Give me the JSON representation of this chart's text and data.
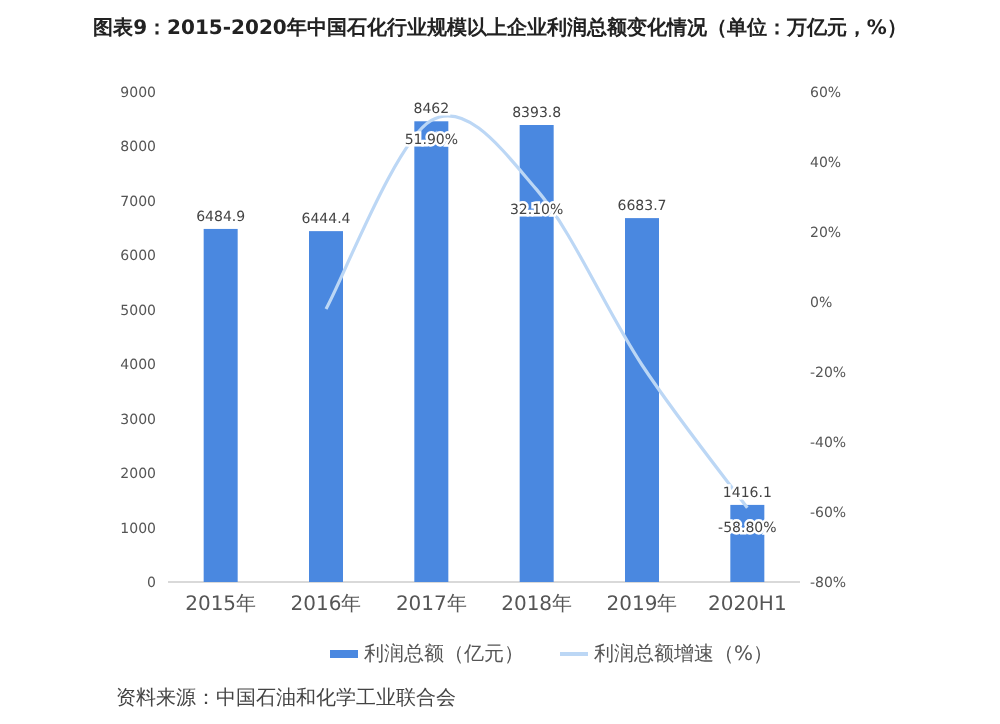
{
  "chart_data": {
    "type": "bar",
    "title": "图表9：2015-2020年中国石化行业规模以上企业利润总额变化情况（单位：万亿元，%）",
    "categories": [
      "2015年",
      "2016年",
      "2017年",
      "2018年",
      "2019年",
      "2020H1"
    ],
    "series": [
      {
        "name": "利润总额（亿元）",
        "color": "#4a88e0",
        "values": [
          6484.9,
          6444.4,
          8462,
          8393.8,
          6683.7,
          1416.1
        ],
        "value_labels": [
          "6484.9",
          "6444.4",
          "8462",
          "8393.8",
          "6683.7",
          "1416.1"
        ]
      },
      {
        "name": "利润总额增速（%）",
        "type": "line",
        "axis": "y2",
        "color": "#bcd7f5",
        "values": [
          null,
          -2,
          51.9,
          32.1,
          -18,
          -58.8
        ],
        "value_labels": [
          null,
          null,
          "51.90%",
          "32.10%",
          null,
          "-58.80%"
        ]
      }
    ],
    "ylim": [
      0,
      9000
    ],
    "yticks": [
      0,
      1000,
      2000,
      3000,
      4000,
      5000,
      6000,
      7000,
      8000,
      9000
    ],
    "y2lim": [
      -80,
      60
    ],
    "y2ticks": [
      {
        "value": -80,
        "label": "-80%"
      },
      {
        "value": -60,
        "label": "-60%"
      },
      {
        "value": -40,
        "label": "-40%"
      },
      {
        "value": -20,
        "label": "-20%"
      },
      {
        "value": 0,
        "label": "0%"
      },
      {
        "value": 20,
        "label": "20%"
      },
      {
        "value": 40,
        "label": "40%"
      },
      {
        "value": 60,
        "label": "60%"
      }
    ],
    "legend": "bottom",
    "grid": false,
    "annotations": [
      "资料来源：中国石油和化学工业联合会"
    ]
  }
}
